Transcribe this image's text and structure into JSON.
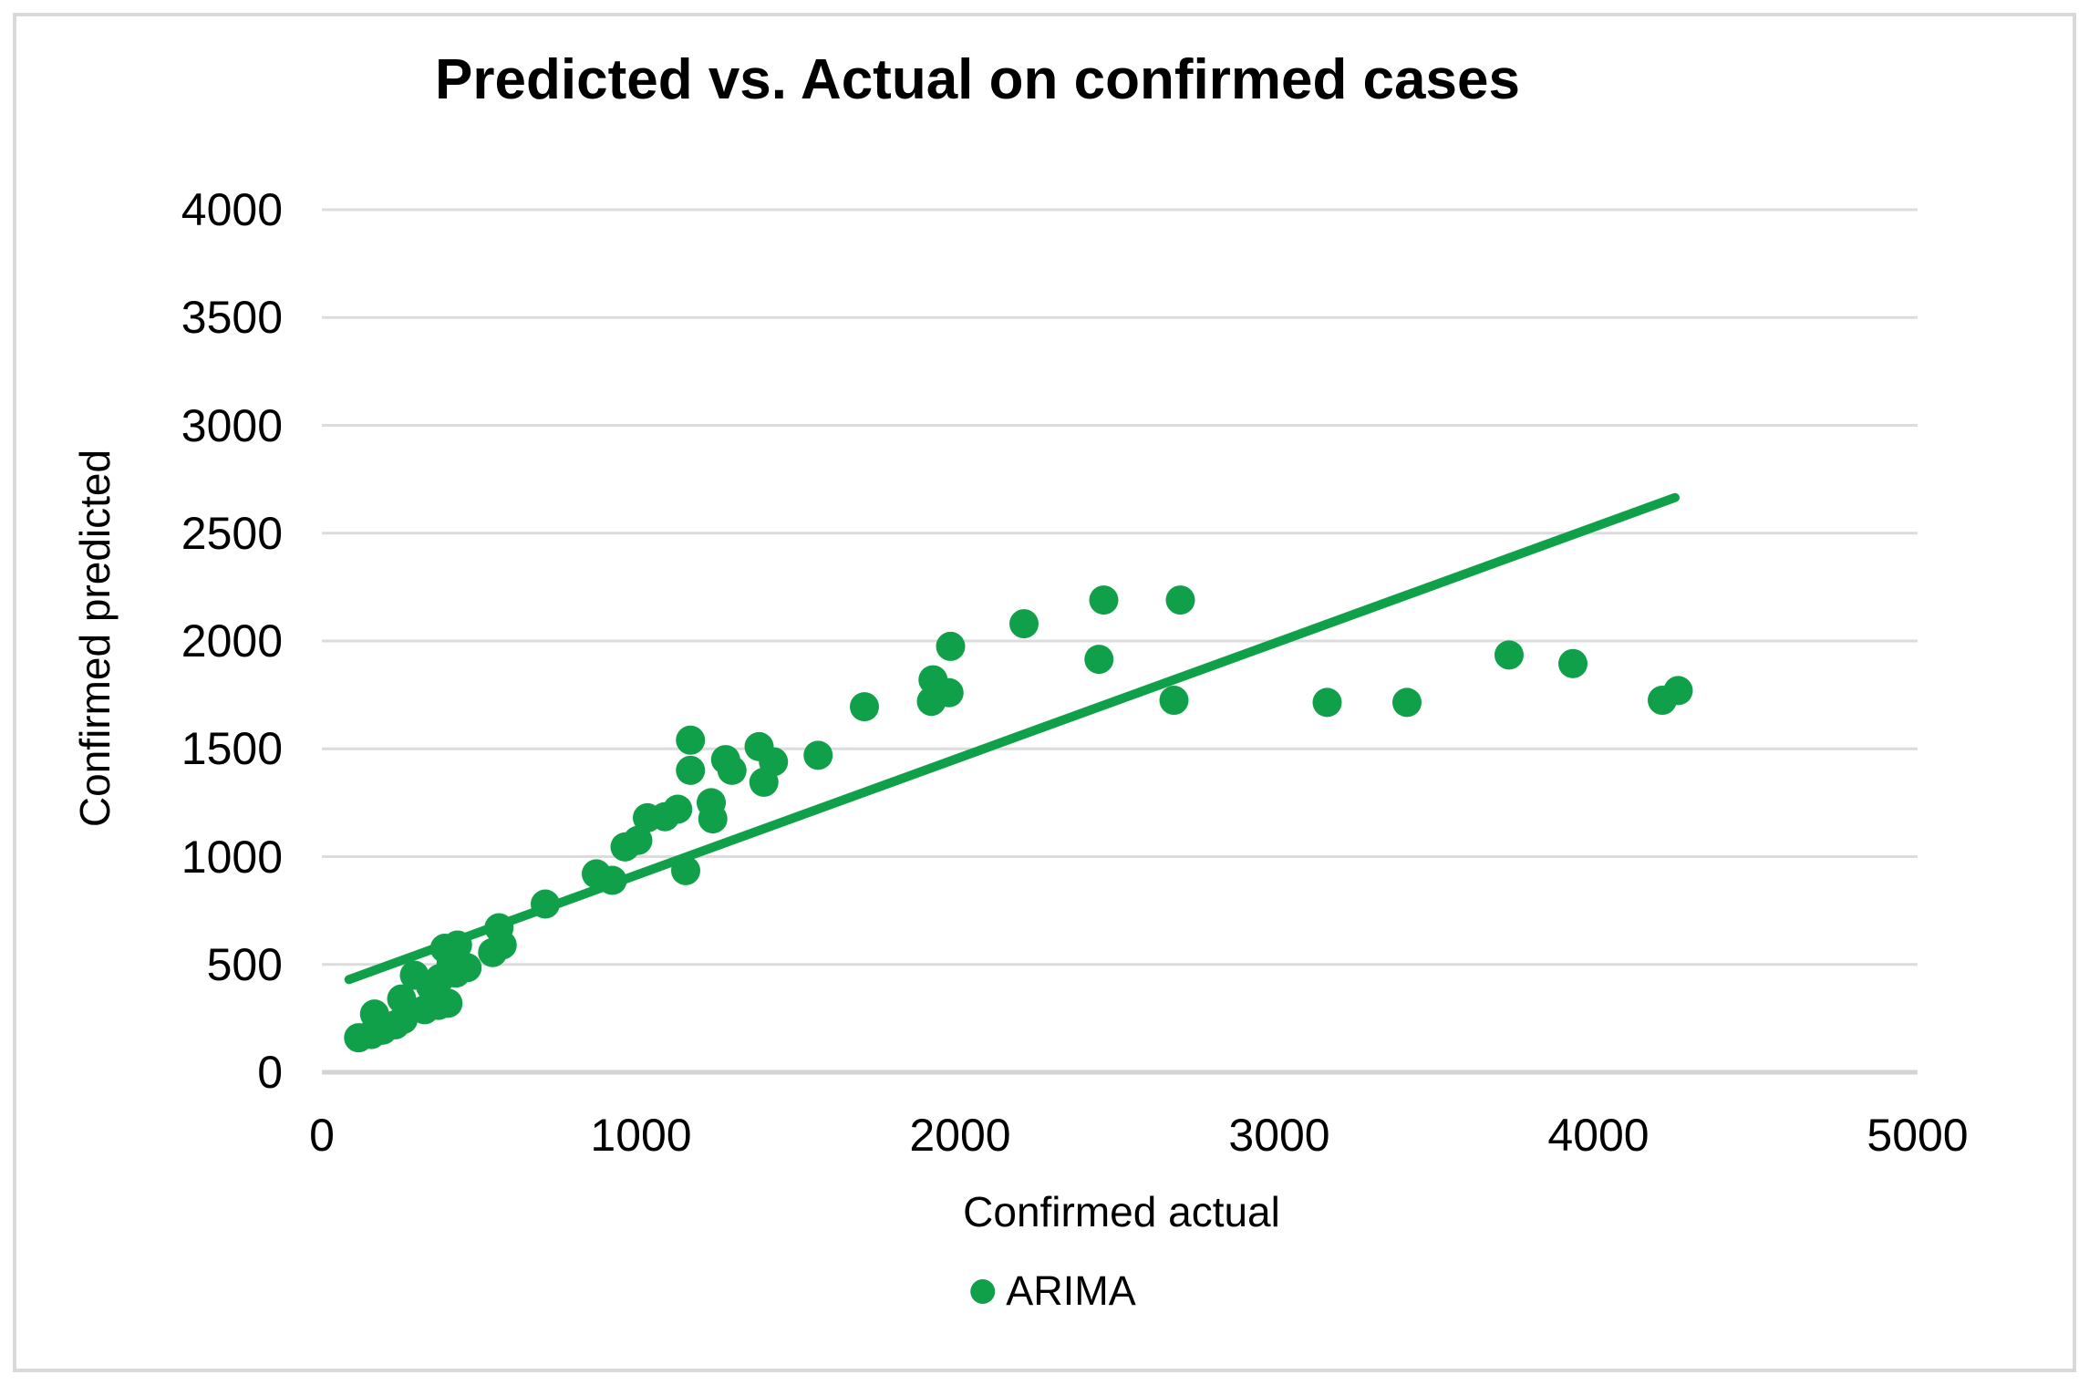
{
  "frame": {
    "background": "#FFFFFF",
    "border_color": "#D9D9D9"
  },
  "chart_data": {
    "type": "scatter",
    "title": "Predicted vs. Actual on confirmed cases",
    "xlabel": "Confirmed actual",
    "ylabel": "Confirmed predicted",
    "xlim": [
      0,
      5000
    ],
    "ylim": [
      0,
      4000
    ],
    "x_ticks": [
      0,
      1000,
      2000,
      3000,
      4000,
      5000
    ],
    "y_ticks": [
      0,
      500,
      1000,
      1500,
      2000,
      2500,
      3000,
      3500,
      4000
    ],
    "grid": "horizontal-only",
    "grid_color": "#DCDCDC",
    "axis_line_color": "#D2D2D2",
    "text_color": "#000000",
    "accent_green": "#11A04A",
    "legend": {
      "position": "bottom",
      "entries": [
        {
          "label": "ARIMA",
          "marker": "circle",
          "color": "#11A04A"
        }
      ]
    },
    "series": [
      {
        "name": "ARIMA",
        "color": "#11A04A",
        "marker_diameter_px": 32,
        "points": [
          [
            115,
            160
          ],
          [
            155,
            175
          ],
          [
            190,
            195
          ],
          [
            230,
            220
          ],
          [
            255,
            245
          ],
          [
            165,
            270
          ],
          [
            250,
            340
          ],
          [
            322,
            290
          ],
          [
            365,
            310
          ],
          [
            395,
            320
          ],
          [
            340,
            400
          ],
          [
            290,
            450
          ],
          [
            370,
            435
          ],
          [
            405,
            505
          ],
          [
            420,
            460
          ],
          [
            455,
            485
          ],
          [
            385,
            575
          ],
          [
            425,
            590
          ],
          [
            535,
            555
          ],
          [
            565,
            590
          ],
          [
            555,
            670
          ],
          [
            700,
            780
          ],
          [
            860,
            920
          ],
          [
            910,
            890
          ],
          [
            950,
            1045
          ],
          [
            990,
            1075
          ],
          [
            1020,
            1180
          ],
          [
            1075,
            1185
          ],
          [
            1115,
            1220
          ],
          [
            1140,
            935
          ],
          [
            1155,
            1400
          ],
          [
            1155,
            1540
          ],
          [
            1220,
            1250
          ],
          [
            1225,
            1175
          ],
          [
            1265,
            1450
          ],
          [
            1285,
            1400
          ],
          [
            1370,
            1510
          ],
          [
            1385,
            1345
          ],
          [
            1415,
            1440
          ],
          [
            1555,
            1470
          ],
          [
            1700,
            1695
          ],
          [
            1910,
            1720
          ],
          [
            1915,
            1820
          ],
          [
            1965,
            1760
          ],
          [
            1970,
            1975
          ],
          [
            2200,
            2080
          ],
          [
            2435,
            1915
          ],
          [
            2450,
            2190
          ],
          [
            2670,
            1725
          ],
          [
            2690,
            2190
          ],
          [
            3150,
            1715
          ],
          [
            3400,
            1715
          ],
          [
            3720,
            1935
          ],
          [
            3920,
            1895
          ],
          [
            4200,
            1725
          ],
          [
            4250,
            1770
          ]
        ]
      }
    ],
    "trendline": {
      "series": "ARIMA",
      "shape": "linear",
      "color": "#11A04A",
      "x1": 85,
      "y1": 430,
      "x2": 4240,
      "y2": 2665
    }
  }
}
